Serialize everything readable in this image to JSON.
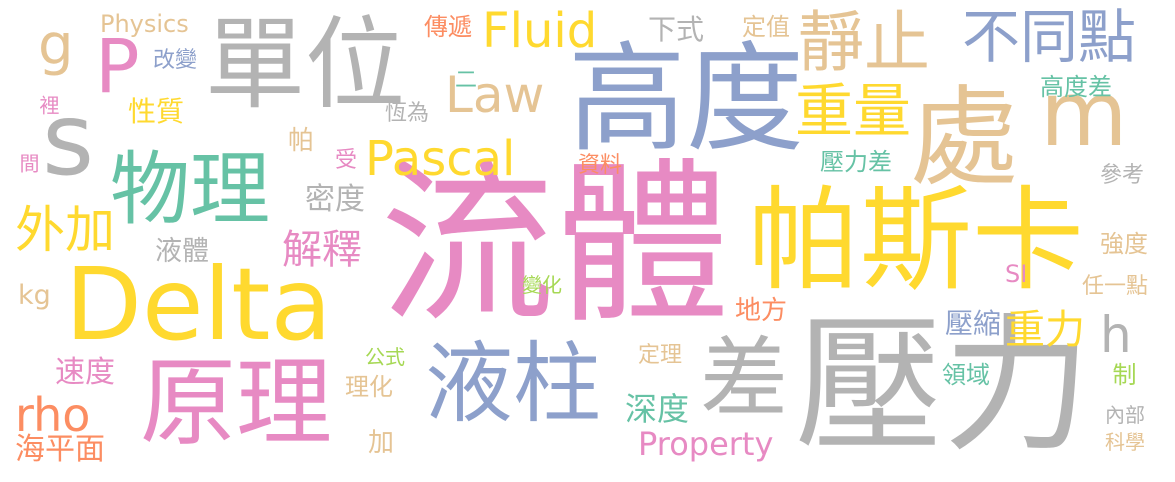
{
  "colors": {
    "pink": "#e78ac3",
    "yellow": "#ffd92f",
    "gray": "#b3b3b3",
    "blue": "#8da0cb",
    "tan": "#e5c494",
    "green": "#66c2a5",
    "orange": "#fc8d62",
    "lime": "#a6d854"
  },
  "words": [
    "流體",
    "壓力",
    "帕斯卡",
    "高度",
    "Delta",
    "原理",
    "單位",
    "液柱",
    "處",
    "物理",
    "差",
    "P",
    "s",
    "m",
    "不同點",
    "靜止",
    "重量",
    "Pascal",
    "Fluid",
    "Law",
    "外加",
    "rho",
    "g",
    "h",
    "解釋",
    "密度",
    "液體",
    "海平面",
    "Property",
    "深度",
    "重力",
    "壓縮",
    "速度",
    "kg",
    "Physics",
    "改變",
    "性質",
    "裡",
    "間",
    "傳遞",
    "二",
    "恆為",
    "帕",
    "受",
    "下式",
    "定值",
    "高度差",
    "壓力差",
    "參考",
    "資料",
    "變化",
    "SI",
    "地方",
    "公式",
    "理化",
    "加",
    "定理",
    "領域",
    "制",
    "內部",
    "科學",
    "強度",
    "任一點"
  ]
}
